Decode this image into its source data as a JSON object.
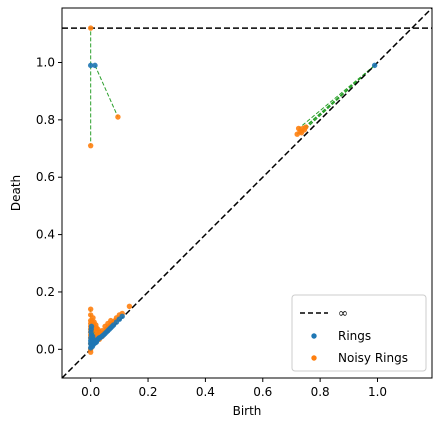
{
  "chart_data": {
    "type": "scatter",
    "title": "",
    "xlabel": "Birth",
    "ylabel": "Death",
    "xlim": [
      -0.1,
      1.19
    ],
    "ylim": [
      -0.1,
      1.19
    ],
    "xticks": [
      0.0,
      0.2,
      0.4,
      0.6,
      0.8,
      1.0
    ],
    "yticks": [
      0.0,
      0.2,
      0.4,
      0.6,
      0.8,
      1.0
    ],
    "xtick_labels": [
      "0.0",
      "0.2",
      "0.4",
      "0.6",
      "0.8",
      "1.0"
    ],
    "ytick_labels": [
      "0.0",
      "0.2",
      "0.4",
      "0.6",
      "0.8",
      "1.0"
    ],
    "infinity_level": 1.12,
    "legend_position": "bottom-right",
    "legend": {
      "infinity_label": "∞",
      "series_labels": [
        "Rings",
        "Noisy Rings"
      ]
    },
    "colors": {
      "rings": "#1f77b4",
      "noisy": "#ff7f0e",
      "matching": "#2ca02c",
      "reference": "#000000"
    },
    "series": [
      {
        "name": "Rings",
        "points": [
          [
            0.0,
            0.99
          ],
          [
            0.015,
            0.99
          ],
          [
            0.99,
            0.99
          ],
          [
            0.0,
            0.005
          ],
          [
            0.002,
            0.01
          ],
          [
            0.004,
            0.015
          ],
          [
            0.006,
            0.01
          ],
          [
            0.008,
            0.02
          ],
          [
            0.01,
            0.018
          ],
          [
            0.012,
            0.025
          ],
          [
            0.015,
            0.022
          ],
          [
            0.018,
            0.03
          ],
          [
            0.02,
            0.025
          ],
          [
            0.022,
            0.032
          ],
          [
            0.025,
            0.035
          ],
          [
            0.028,
            0.038
          ],
          [
            0.03,
            0.04
          ],
          [
            0.035,
            0.042
          ],
          [
            0.04,
            0.046
          ],
          [
            0.045,
            0.05
          ],
          [
            0.05,
            0.055
          ],
          [
            0.055,
            0.06
          ],
          [
            0.06,
            0.065
          ],
          [
            0.065,
            0.07
          ],
          [
            0.07,
            0.075
          ],
          [
            0.075,
            0.08
          ],
          [
            0.08,
            0.085
          ],
          [
            0.09,
            0.095
          ],
          [
            0.1,
            0.105
          ],
          [
            0.11,
            0.115
          ],
          [
            0.001,
            0.04
          ],
          [
            0.003,
            0.05
          ],
          [
            0.005,
            0.03
          ],
          [
            0.007,
            0.045
          ],
          [
            0.009,
            0.035
          ],
          [
            0.0,
            0.02
          ],
          [
            0.0,
            0.03
          ],
          [
            0.001,
            0.06
          ],
          [
            0.002,
            0.07
          ],
          [
            0.003,
            0.08
          ]
        ]
      },
      {
        "name": "Noisy Rings",
        "points": [
          [
            0.0,
            1.12
          ],
          [
            0.095,
            0.81
          ],
          [
            0.0,
            0.71
          ],
          [
            0.72,
            0.75
          ],
          [
            0.725,
            0.77
          ],
          [
            0.73,
            0.76
          ],
          [
            0.735,
            0.755
          ],
          [
            0.74,
            0.77
          ],
          [
            0.745,
            0.765
          ],
          [
            0.75,
            0.775
          ],
          [
            0.0,
            0.14
          ],
          [
            0.0,
            0.12
          ],
          [
            0.0,
            0.1
          ],
          [
            0.0,
            0.09
          ],
          [
            0.0,
            0.08
          ],
          [
            0.0,
            0.07
          ],
          [
            0.0,
            0.06
          ],
          [
            0.0,
            0.05
          ],
          [
            0.0,
            0.04
          ],
          [
            0.0,
            0.02
          ],
          [
            0.0,
            0.0
          ],
          [
            0.0,
            -0.01
          ],
          [
            0.005,
            0.095
          ],
          [
            0.005,
            0.065
          ],
          [
            0.005,
            0.03
          ],
          [
            0.01,
            0.085
          ],
          [
            0.01,
            0.045
          ],
          [
            0.015,
            0.07
          ],
          [
            0.015,
            0.03
          ],
          [
            0.02,
            0.05
          ],
          [
            0.02,
            0.075
          ],
          [
            0.025,
            0.045
          ],
          [
            0.025,
            0.07
          ],
          [
            0.03,
            0.035
          ],
          [
            0.03,
            0.06
          ],
          [
            0.035,
            0.05
          ],
          [
            0.04,
            0.045
          ],
          [
            0.04,
            0.065
          ],
          [
            0.045,
            0.055
          ],
          [
            0.05,
            0.06
          ],
          [
            0.05,
            0.08
          ],
          [
            0.055,
            0.07
          ],
          [
            0.06,
            0.075
          ],
          [
            0.06,
            0.09
          ],
          [
            0.065,
            0.08
          ],
          [
            0.07,
            0.085
          ],
          [
            0.07,
            0.1
          ],
          [
            0.075,
            0.09
          ],
          [
            0.08,
            0.095
          ],
          [
            0.085,
            0.1
          ],
          [
            0.09,
            0.11
          ],
          [
            0.1,
            0.12
          ],
          [
            0.11,
            0.125
          ],
          [
            0.135,
            0.15
          ],
          [
            0.008,
            0.11
          ],
          [
            0.012,
            0.095
          ],
          [
            0.018,
            0.085
          ],
          [
            0.022,
            0.06
          ],
          [
            0.028,
            0.05
          ]
        ]
      }
    ],
    "matching_lines": [
      [
        [
          0.0,
          0.99
        ],
        [
          0.0,
          1.12
        ]
      ],
      [
        [
          0.015,
          0.99
        ],
        [
          0.095,
          0.81
        ]
      ],
      [
        [
          0.0,
          0.99
        ],
        [
          0.0,
          0.71
        ]
      ],
      [
        [
          0.99,
          0.99
        ],
        [
          0.72,
          0.75
        ]
      ],
      [
        [
          0.99,
          0.99
        ],
        [
          0.725,
          0.77
        ]
      ],
      [
        [
          0.99,
          0.99
        ],
        [
          0.73,
          0.76
        ]
      ],
      [
        [
          0.99,
          0.99
        ],
        [
          0.735,
          0.755
        ]
      ],
      [
        [
          0.99,
          0.99
        ],
        [
          0.74,
          0.77
        ]
      ],
      [
        [
          0.99,
          0.99
        ],
        [
          0.745,
          0.765
        ]
      ],
      [
        [
          0.99,
          0.99
        ],
        [
          0.75,
          0.775
        ]
      ],
      [
        [
          0.0,
          0.005
        ],
        [
          0.0,
          0.14
        ]
      ],
      [
        [
          0.002,
          0.01
        ],
        [
          0.0,
          0.12
        ]
      ],
      [
        [
          0.004,
          0.015
        ],
        [
          0.005,
          0.095
        ]
      ],
      [
        [
          0.01,
          0.018
        ],
        [
          0.01,
          0.085
        ]
      ],
      [
        [
          0.02,
          0.025
        ],
        [
          0.015,
          0.07
        ]
      ],
      [
        [
          0.03,
          0.04
        ],
        [
          0.02,
          0.075
        ]
      ],
      [
        [
          0.04,
          0.046
        ],
        [
          0.035,
          0.05
        ]
      ],
      [
        [
          0.05,
          0.055
        ],
        [
          0.04,
          0.065
        ]
      ],
      [
        [
          0.06,
          0.065
        ],
        [
          0.05,
          0.08
        ]
      ],
      [
        [
          0.07,
          0.075
        ],
        [
          0.06,
          0.09
        ]
      ],
      [
        [
          0.08,
          0.085
        ],
        [
          0.07,
          0.1
        ]
      ],
      [
        [
          0.09,
          0.095
        ],
        [
          0.08,
          0.095
        ]
      ],
      [
        [
          0.1,
          0.105
        ],
        [
          0.09,
          0.11
        ]
      ],
      [
        [
          0.11,
          0.115
        ],
        [
          0.1,
          0.12
        ]
      ],
      [
        [
          0.001,
          0.04
        ],
        [
          0.008,
          0.11
        ]
      ],
      [
        [
          0.003,
          0.05
        ],
        [
          0.012,
          0.095
        ]
      ],
      [
        [
          0.005,
          0.03
        ],
        [
          0.018,
          0.085
        ]
      ],
      [
        [
          0.007,
          0.045
        ],
        [
          0.022,
          0.06
        ]
      ],
      [
        [
          0.009,
          0.035
        ],
        [
          0.028,
          0.05
        ]
      ],
      [
        [
          0.025,
          0.035
        ],
        [
          0.045,
          0.055
        ]
      ],
      [
        [
          0.035,
          0.042
        ],
        [
          0.055,
          0.07
        ]
      ],
      [
        [
          0.045,
          0.05
        ],
        [
          0.065,
          0.08
        ]
      ]
    ]
  }
}
